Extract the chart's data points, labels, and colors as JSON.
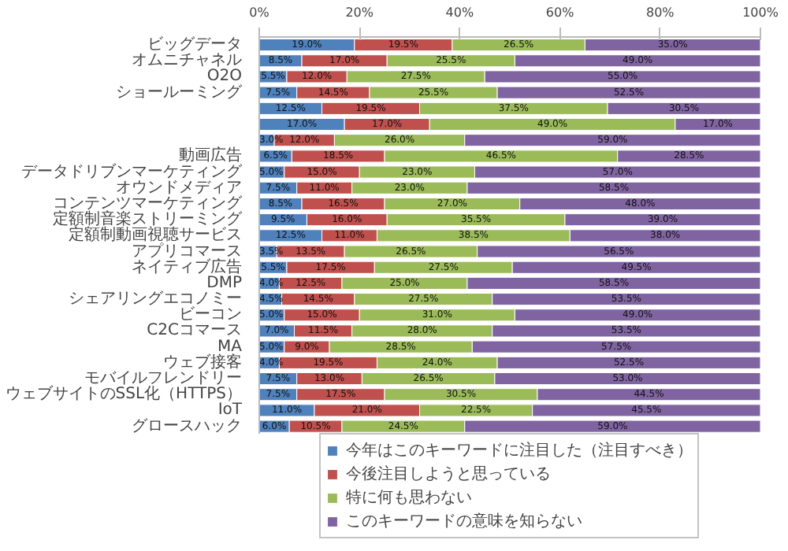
{
  "chart_data": {
    "type": "bar",
    "orientation": "horizontal",
    "stacked": true,
    "categories": [
      "ビッグデータ",
      "オムニチャネル",
      "O2O",
      "ショールーミング",
      null,
      null,
      null,
      "動画広告",
      "データドリブンマーケティング",
      "オウンドメディア",
      "コンテンツマーケティング",
      "定額制音楽ストリーミング",
      "定額制動画視聴サービス",
      "アプリコマース",
      "ネイティブ広告",
      "DMP",
      "シェアリングエコノミー",
      "ビーコン",
      "C2Cコマース",
      "MA",
      "ウェブ接客",
      "モバイルフレンドリー",
      "ウェブサイトのSSL化（HTTPS）",
      "IoT",
      "グロースハック"
    ],
    "series": [
      {
        "name": "今年はこのキーワードに注目した（注目すべき）",
        "color": "#4f81bd",
        "values": [
          19.0,
          8.5,
          5.5,
          7.5,
          12.5,
          17.0,
          3.0,
          6.5,
          5.0,
          7.5,
          8.5,
          9.5,
          12.5,
          3.5,
          5.5,
          4.0,
          4.5,
          5.0,
          7.0,
          5.0,
          4.0,
          7.5,
          7.5,
          11.0,
          6.0
        ],
        "value_labels": [
          "19.0%",
          "8.5%",
          "5.5%",
          "7.5%",
          "12.5%",
          "17.0%",
          "3.0%",
          "6.5%",
          "5.0%",
          "7.5%",
          "8.5%",
          "9.5%",
          "12.5%",
          "3.5%",
          "5.5%",
          "4.0%",
          "4.5%",
          "5.0%",
          "7.0%",
          "5.0%",
          "4.0%",
          "7.5%",
          "7.5%",
          "11.0%",
          "6.0%"
        ]
      },
      {
        "name": "今後注目しようと思っている",
        "color": "#c0504d",
        "values": [
          19.5,
          17.0,
          12.0,
          14.5,
          19.5,
          17.0,
          12.0,
          18.5,
          15.0,
          11.0,
          16.5,
          16.0,
          11.0,
          13.5,
          17.5,
          12.5,
          14.5,
          15.0,
          11.5,
          9.0,
          19.5,
          13.0,
          17.5,
          21.0,
          10.5
        ],
        "value_labels": [
          "19.5%",
          "17.0%",
          "12.0%",
          "14.5%",
          "19.5%",
          "17.0%",
          "12.0%",
          "18.5%",
          "15.0%",
          "11.0%",
          "16.5%",
          "16.0%",
          "11.0%",
          "13.5%",
          "17.5%",
          "12.5%",
          "14.5%",
          "15.0%",
          "11.5%",
          "9.0%",
          "19.5%",
          "13.0%",
          "17.5%",
          "21.0%",
          "10.5%"
        ]
      },
      {
        "name": "特に何も思わない",
        "color": "#9bbb59",
        "values": [
          26.5,
          25.5,
          27.5,
          25.5,
          37.5,
          49.0,
          26.0,
          46.5,
          23.0,
          23.0,
          27.0,
          35.5,
          38.5,
          26.5,
          27.5,
          25.0,
          27.5,
          31.0,
          28.0,
          28.5,
          24.0,
          26.5,
          30.5,
          22.5,
          24.5
        ],
        "value_labels": [
          "26.5%",
          "25.5%",
          "27.5%",
          "25.5%",
          "37.5%",
          "49.0%",
          "26.0%",
          "46.5%",
          "23.0%",
          "23.0%",
          "27.0%",
          "35.5%",
          "38.5%",
          "26.5%",
          "27.5%",
          "25.0%",
          "27.5%",
          "31.0%",
          "28.0%",
          "28.5%",
          "24.0%",
          "26.5%",
          "30.5%",
          "22.5%",
          "24.5%"
        ]
      },
      {
        "name": "このキーワードの意味を知らない",
        "color": "#8064a2",
        "values": [
          35.0,
          49.0,
          55.0,
          52.5,
          30.5,
          17.0,
          59.0,
          28.5,
          57.0,
          58.5,
          48.0,
          39.0,
          38.0,
          56.5,
          49.5,
          58.5,
          53.5,
          49.0,
          53.5,
          57.5,
          52.5,
          53.0,
          44.5,
          45.5,
          59.0
        ],
        "value_labels": [
          "35.0%",
          "49.0%",
          "55.0%",
          "52.5%",
          "30.5%",
          "17.0%",
          "59.0%",
          "28.5%",
          "57.0%",
          "58.5%",
          "48.0%",
          "39.0%",
          "38.0%",
          "56.5%",
          "49.5%",
          "58.5%",
          "53.5%",
          "49.0%",
          "53.5%",
          "57.5%",
          "52.5%",
          "53.0%",
          "44.5%",
          "45.5%",
          "59.0%"
        ]
      }
    ],
    "xlim": [
      0,
      100
    ],
    "xticks": [
      {
        "value": 0,
        "label": "0%"
      },
      {
        "value": 20,
        "label": "20%"
      },
      {
        "value": 40,
        "label": "40%"
      },
      {
        "value": 60,
        "label": "60%"
      },
      {
        "value": 80,
        "label": "80%"
      },
      {
        "value": 100,
        "label": "100%"
      }
    ],
    "grid": false,
    "legend": "bottom"
  }
}
